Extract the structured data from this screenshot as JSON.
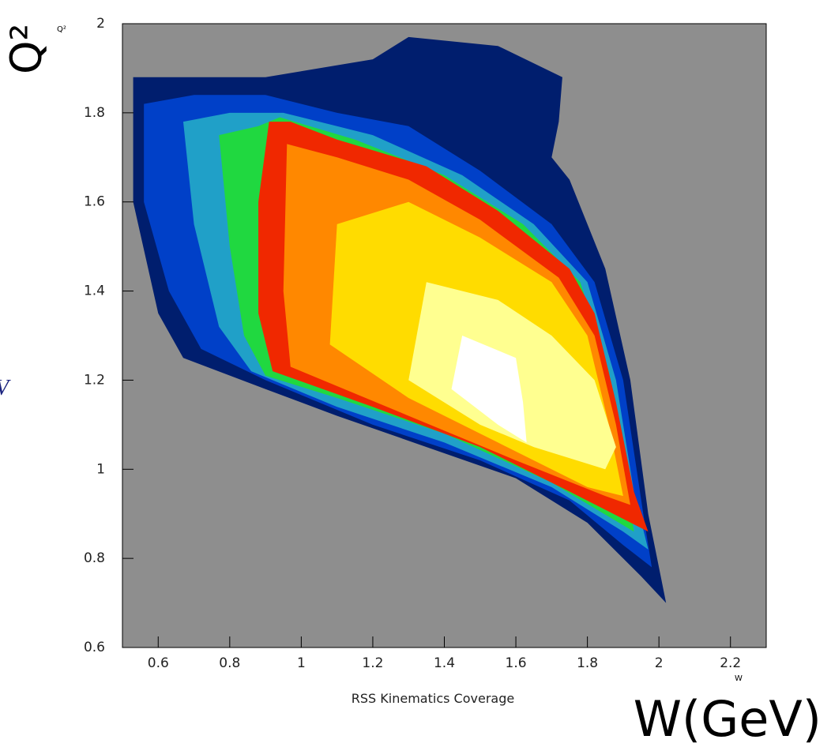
{
  "chart_data": {
    "type": "contour",
    "y_label": "Q²",
    "y_label_small": "Q²",
    "x_label": "W(GeV)",
    "x_label_small": "W",
    "caption": "RSS Kinematics Coverage",
    "side_fragment": "V",
    "xlim": [
      0.5,
      2.3
    ],
    "xticks": [
      0.6,
      0.8,
      1,
      1.2,
      1.4,
      1.6,
      1.8,
      2,
      2.2
    ],
    "ylim": [
      0.6,
      2
    ],
    "yticks": [
      0.6,
      0.8,
      1,
      1.2,
      1.4,
      1.6,
      1.8,
      2
    ],
    "background": "#8e8e8e",
    "regions": [
      {
        "color": "#001e6e",
        "points": [
          [
            0.53,
            1.88
          ],
          [
            0.53,
            1.6
          ],
          [
            0.6,
            1.35
          ],
          [
            0.67,
            1.25
          ],
          [
            0.9,
            1.18
          ],
          [
            1.1,
            1.12
          ],
          [
            1.35,
            1.05
          ],
          [
            1.6,
            0.98
          ],
          [
            1.8,
            0.88
          ],
          [
            1.95,
            0.76
          ],
          [
            2.02,
            0.7
          ],
          [
            2.0,
            0.78
          ],
          [
            1.97,
            0.9
          ],
          [
            1.92,
            1.2
          ],
          [
            1.85,
            1.45
          ],
          [
            1.8,
            1.55
          ],
          [
            1.75,
            1.65
          ],
          [
            1.7,
            1.7
          ],
          [
            1.72,
            1.78
          ],
          [
            1.73,
            1.88
          ],
          [
            1.55,
            1.95
          ],
          [
            1.3,
            1.97
          ],
          [
            1.2,
            1.92
          ],
          [
            0.9,
            1.88
          ]
        ]
      },
      {
        "color": "#0040c8",
        "points": [
          [
            0.56,
            1.82
          ],
          [
            0.56,
            1.6
          ],
          [
            0.63,
            1.4
          ],
          [
            0.72,
            1.27
          ],
          [
            0.9,
            1.2
          ],
          [
            1.2,
            1.1
          ],
          [
            1.5,
            1.02
          ],
          [
            1.75,
            0.93
          ],
          [
            1.9,
            0.83
          ],
          [
            1.98,
            0.78
          ],
          [
            1.96,
            0.88
          ],
          [
            1.9,
            1.2
          ],
          [
            1.82,
            1.42
          ],
          [
            1.7,
            1.55
          ],
          [
            1.5,
            1.67
          ],
          [
            1.3,
            1.77
          ],
          [
            1.1,
            1.8
          ],
          [
            0.9,
            1.84
          ],
          [
            0.7,
            1.84
          ]
        ]
      },
      {
        "color": "#20a0c8",
        "points": [
          [
            0.67,
            1.78
          ],
          [
            0.7,
            1.55
          ],
          [
            0.77,
            1.32
          ],
          [
            0.86,
            1.22
          ],
          [
            1.1,
            1.14
          ],
          [
            1.4,
            1.06
          ],
          [
            1.7,
            0.96
          ],
          [
            1.9,
            0.86
          ],
          [
            1.97,
            0.82
          ],
          [
            1.93,
            0.95
          ],
          [
            1.88,
            1.2
          ],
          [
            1.8,
            1.42
          ],
          [
            1.65,
            1.55
          ],
          [
            1.45,
            1.66
          ],
          [
            1.2,
            1.75
          ],
          [
            0.95,
            1.8
          ],
          [
            0.8,
            1.8
          ]
        ]
      },
      {
        "color": "#20d840",
        "points": [
          [
            0.77,
            1.75
          ],
          [
            0.8,
            1.5
          ],
          [
            0.84,
            1.3
          ],
          [
            0.9,
            1.21
          ],
          [
            1.1,
            1.16
          ],
          [
            1.4,
            1.08
          ],
          [
            1.7,
            0.97
          ],
          [
            1.93,
            0.86
          ],
          [
            1.91,
            0.98
          ],
          [
            1.86,
            1.22
          ],
          [
            1.78,
            1.42
          ],
          [
            1.62,
            1.55
          ],
          [
            1.4,
            1.66
          ],
          [
            1.15,
            1.74
          ],
          [
            0.94,
            1.79
          ],
          [
            0.88,
            1.77
          ]
        ]
      },
      {
        "color": "#f02800",
        "points": [
          [
            0.91,
            1.78
          ],
          [
            0.88,
            1.6
          ],
          [
            0.88,
            1.35
          ],
          [
            0.92,
            1.22
          ],
          [
            1.2,
            1.14
          ],
          [
            1.5,
            1.05
          ],
          [
            1.75,
            0.95
          ],
          [
            1.97,
            0.86
          ],
          [
            1.93,
            0.95
          ],
          [
            1.88,
            1.15
          ],
          [
            1.82,
            1.35
          ],
          [
            1.75,
            1.45
          ],
          [
            1.55,
            1.58
          ],
          [
            1.35,
            1.68
          ],
          [
            1.1,
            1.74
          ],
          [
            0.97,
            1.78
          ]
        ]
      },
      {
        "color": "#ff8800",
        "points": [
          [
            0.96,
            1.73
          ],
          [
            0.95,
            1.4
          ],
          [
            0.97,
            1.23
          ],
          [
            1.3,
            1.12
          ],
          [
            1.6,
            1.02
          ],
          [
            1.85,
            0.94
          ],
          [
            1.92,
            0.92
          ],
          [
            1.88,
            1.1
          ],
          [
            1.82,
            1.3
          ],
          [
            1.72,
            1.43
          ],
          [
            1.5,
            1.56
          ],
          [
            1.3,
            1.65
          ],
          [
            1.1,
            1.7
          ]
        ]
      },
      {
        "color": "#ffdc00",
        "points": [
          [
            1.1,
            1.55
          ],
          [
            1.08,
            1.28
          ],
          [
            1.3,
            1.16
          ],
          [
            1.55,
            1.06
          ],
          [
            1.8,
            0.96
          ],
          [
            1.9,
            0.94
          ],
          [
            1.86,
            1.1
          ],
          [
            1.8,
            1.3
          ],
          [
            1.7,
            1.42
          ],
          [
            1.5,
            1.52
          ],
          [
            1.3,
            1.6
          ]
        ]
      },
      {
        "color": "#ffff90",
        "points": [
          [
            1.35,
            1.42
          ],
          [
            1.3,
            1.2
          ],
          [
            1.5,
            1.1
          ],
          [
            1.65,
            1.05
          ],
          [
            1.85,
            1.0
          ],
          [
            1.88,
            1.05
          ],
          [
            1.82,
            1.2
          ],
          [
            1.7,
            1.3
          ],
          [
            1.55,
            1.38
          ]
        ]
      },
      {
        "color": "#ffffff",
        "points": [
          [
            1.45,
            1.3
          ],
          [
            1.42,
            1.18
          ],
          [
            1.55,
            1.1
          ],
          [
            1.63,
            1.06
          ],
          [
            1.62,
            1.15
          ],
          [
            1.6,
            1.25
          ]
        ]
      }
    ]
  }
}
